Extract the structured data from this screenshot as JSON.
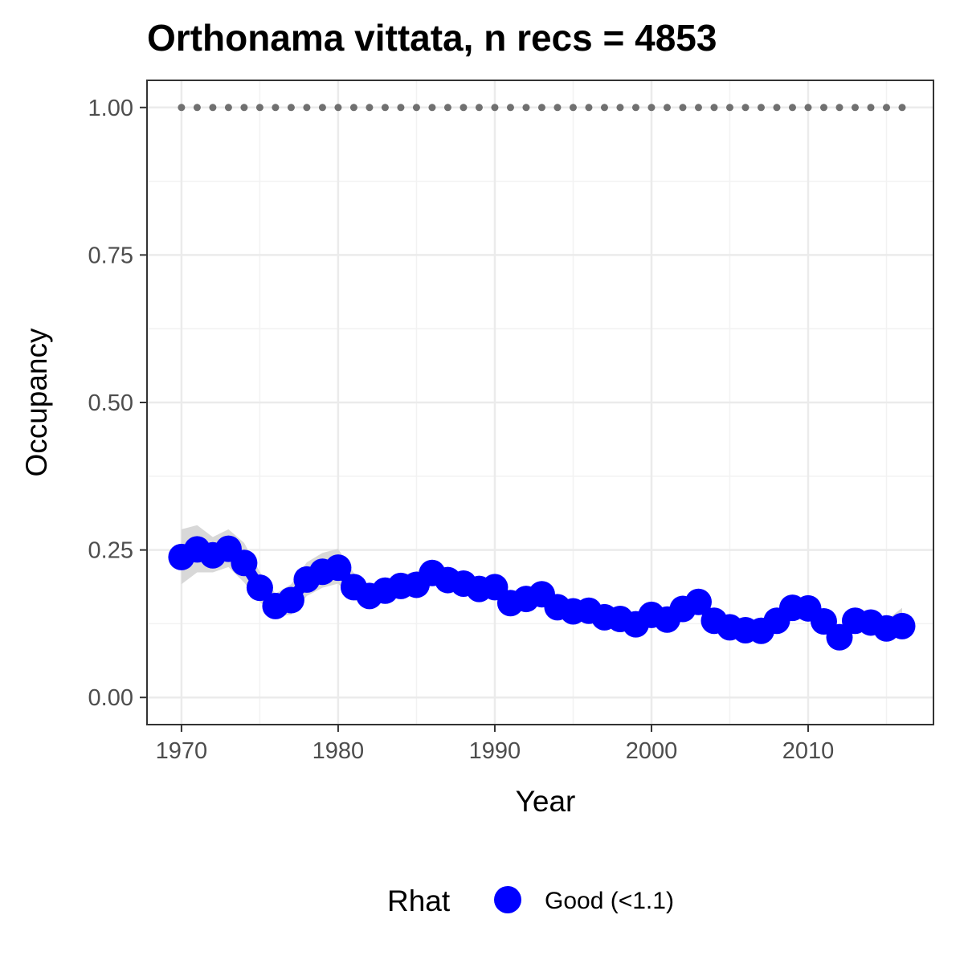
{
  "chart_data": {
    "type": "line",
    "title": "Orthonama vittata, n recs = 4853",
    "xlabel": "Year",
    "ylabel": "Occupancy",
    "xlim": [
      1967.8,
      1918.0
    ],
    "ylim": [
      -0.046,
      1.046
    ],
    "x_ticks": [
      1970,
      1980,
      1990,
      2000,
      2010
    ],
    "x_tick_labels": [
      "1970",
      "1980",
      "1990",
      "2000",
      "2010"
    ],
    "y_ticks": [
      0,
      0.25,
      0.5,
      0.75,
      1.0
    ],
    "y_tick_labels": [
      "0.00",
      "0.25",
      "0.50",
      "0.75",
      "1.00"
    ],
    "grid": true,
    "legend": {
      "position": "bottom",
      "title": "Rhat",
      "entries": [
        {
          "label": "Good (<1.1)",
          "color": "#0000ff"
        }
      ]
    },
    "colors": {
      "points": "#0000ff",
      "ribbon": "#d4d4d4",
      "dotted_line": "#707070"
    },
    "series": [
      {
        "x": [
          1970,
          1971,
          1972,
          1973,
          1974,
          1975,
          1976,
          1977,
          1978,
          1979,
          1980,
          1981,
          1982,
          1983,
          1984,
          1985,
          1986,
          1987,
          1988,
          1989,
          1990,
          1991,
          1992,
          1993,
          1994,
          1995,
          1996,
          1997,
          1998,
          1999,
          2000,
          2001,
          2002,
          2003,
          2004,
          2005,
          2006,
          2007,
          2008,
          2009,
          2010,
          2011,
          2012,
          2013,
          2014,
          2015,
          2016
        ],
        "y": [
          0.238,
          0.251,
          0.241,
          0.252,
          0.228,
          0.186,
          0.155,
          0.165,
          0.2,
          0.213,
          0.22,
          0.187,
          0.172,
          0.181,
          0.189,
          0.191,
          0.211,
          0.199,
          0.193,
          0.184,
          0.187,
          0.16,
          0.167,
          0.175,
          0.153,
          0.146,
          0.147,
          0.136,
          0.133,
          0.124,
          0.14,
          0.132,
          0.15,
          0.162,
          0.13,
          0.119,
          0.114,
          0.113,
          0.13,
          0.152,
          0.151,
          0.129,
          0.102,
          0.13,
          0.127,
          0.117,
          0.121
        ],
        "lower": [
          0.192,
          0.212,
          0.212,
          0.221,
          0.195,
          0.162,
          0.138,
          0.14,
          0.172,
          0.186,
          0.193,
          0.165,
          0.156,
          0.163,
          0.172,
          0.17,
          0.192,
          0.18,
          0.178,
          0.17,
          0.169,
          0.146,
          0.152,
          0.16,
          0.139,
          0.133,
          0.134,
          0.123,
          0.121,
          0.112,
          0.128,
          0.119,
          0.137,
          0.148,
          0.117,
          0.107,
          0.102,
          0.102,
          0.118,
          0.138,
          0.137,
          0.115,
          0.09,
          0.117,
          0.114,
          0.104,
          0.106
        ],
        "upper": [
          0.285,
          0.292,
          0.272,
          0.285,
          0.262,
          0.213,
          0.176,
          0.192,
          0.229,
          0.245,
          0.252,
          0.211,
          0.19,
          0.2,
          0.208,
          0.213,
          0.231,
          0.219,
          0.211,
          0.199,
          0.206,
          0.176,
          0.183,
          0.191,
          0.167,
          0.16,
          0.161,
          0.15,
          0.146,
          0.137,
          0.153,
          0.146,
          0.164,
          0.177,
          0.144,
          0.132,
          0.127,
          0.125,
          0.143,
          0.167,
          0.166,
          0.144,
          0.116,
          0.144,
          0.141,
          0.131,
          0.152
        ]
      },
      {
        "x": [
          1970,
          1971,
          1972,
          1973,
          1974,
          1975,
          1976,
          1977,
          1978,
          1979,
          1980,
          1981,
          1982,
          1983,
          1984,
          1985,
          1986,
          1987,
          1988,
          1989,
          1990,
          1991,
          1992,
          1993,
          1994,
          1995,
          1996,
          1997,
          1998,
          1999,
          2000,
          2001,
          2002,
          2003,
          2004,
          2005,
          2006,
          2007,
          2008,
          2009,
          2010,
          2011,
          2012,
          2013,
          2014,
          2015,
          2016
        ],
        "y": [
          1,
          1,
          1,
          1,
          1,
          1,
          1,
          1,
          1,
          1,
          1,
          1,
          1,
          1,
          1,
          1,
          1,
          1,
          1,
          1,
          1,
          1,
          1,
          1,
          1,
          1,
          1,
          1,
          1,
          1,
          1,
          1,
          1,
          1,
          1,
          1,
          1,
          1,
          1,
          1,
          1,
          1,
          1,
          1,
          1,
          1,
          1
        ]
      }
    ]
  }
}
